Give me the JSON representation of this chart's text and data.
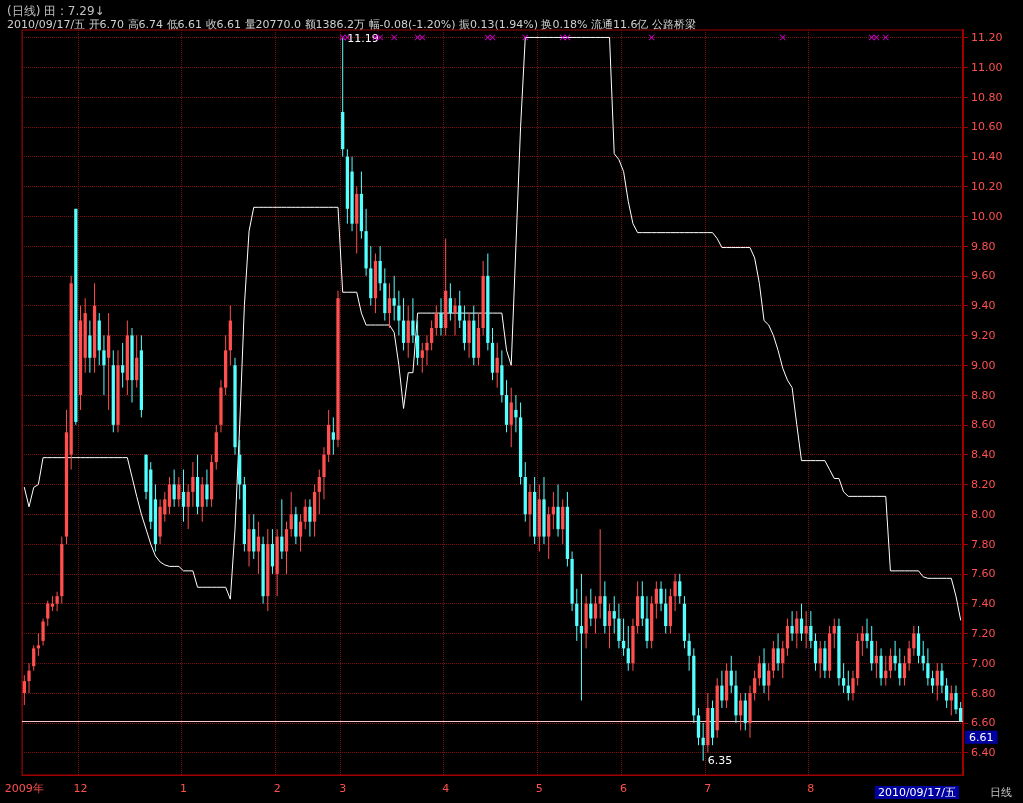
{
  "chart_data": {
    "type": "candlestick",
    "title": "(日线) 田 : 7.29↓",
    "subtitle": "2010/09/17/五 开6.70 高6.74 低6.61 收6.61 量20770.0 额1386.2万 幅-0.08(-1.20%) 振0.13(1.94%) 换0.18% 流通11.6亿 公路桥梁",
    "categories": [
      "2009年",
      null,
      null,
      null,
      null,
      null,
      null,
      null,
      null,
      null,
      null,
      null,
      "12",
      null,
      null,
      null,
      null,
      null,
      null,
      null,
      null,
      null,
      null,
      null,
      null,
      null,
      null,
      null,
      null,
      null,
      null,
      null,
      null,
      null,
      "1",
      null,
      null,
      null,
      null,
      null,
      null,
      null,
      null,
      null,
      null,
      null,
      null,
      null,
      null,
      null,
      null,
      null,
      null,
      null,
      "2",
      null,
      null,
      null,
      null,
      null,
      null,
      null,
      null,
      null,
      null,
      null,
      null,
      null,
      "3",
      null,
      null,
      null,
      null,
      null,
      null,
      null,
      null,
      null,
      null,
      null,
      null,
      null,
      null,
      null,
      null,
      null,
      null,
      null,
      null,
      null,
      "4",
      null,
      null,
      null,
      null,
      null,
      null,
      null,
      null,
      null,
      null,
      null,
      null,
      null,
      null,
      null,
      null,
      null,
      null,
      null,
      "5",
      null,
      null,
      null,
      null,
      null,
      null,
      null,
      null,
      null,
      null,
      null,
      null,
      null,
      null,
      null,
      null,
      null,
      "6",
      null,
      null,
      null,
      null,
      null,
      null,
      null,
      null,
      null,
      null,
      null,
      null,
      null,
      null,
      null,
      null,
      null,
      "7",
      null,
      null,
      null,
      null,
      null,
      null,
      null,
      null,
      null,
      null,
      null,
      null,
      null,
      null,
      null,
      null,
      null,
      null,
      null,
      null,
      null,
      "8",
      null,
      null,
      null,
      null,
      null,
      null,
      null,
      null,
      null,
      null,
      null,
      null,
      null,
      null,
      null,
      null,
      null,
      null,
      null,
      null,
      null,
      null,
      null,
      null,
      null,
      null,
      null,
      null,
      null,
      null,
      null,
      null
    ],
    "ohlc": [
      [
        6.8,
        6.92,
        6.72,
        6.88
      ],
      [
        6.88,
        7.0,
        6.8,
        6.95
      ],
      [
        6.98,
        7.12,
        6.95,
        7.1
      ],
      [
        7.1,
        7.2,
        7.05,
        7.12
      ],
      [
        7.15,
        7.3,
        7.12,
        7.28
      ],
      [
        7.3,
        7.42,
        7.25,
        7.4
      ],
      [
        7.38,
        7.45,
        7.35,
        7.4
      ],
      [
        7.4,
        7.48,
        7.35,
        7.45
      ],
      [
        7.45,
        7.85,
        7.4,
        7.8
      ],
      [
        7.85,
        8.7,
        7.8,
        8.55
      ],
      [
        8.4,
        9.6,
        8.3,
        9.55
      ],
      [
        10.05,
        10.05,
        8.6,
        8.62
      ],
      [
        8.8,
        9.4,
        8.7,
        9.3
      ],
      [
        9.05,
        9.45,
        8.95,
        9.35
      ],
      [
        9.2,
        9.3,
        8.95,
        9.05
      ],
      [
        9.05,
        9.55,
        8.95,
        9.4
      ],
      [
        9.3,
        9.35,
        9.0,
        9.1
      ],
      [
        9.1,
        9.2,
        8.8,
        9.0
      ],
      [
        9.05,
        9.35,
        8.7,
        9.2
      ],
      [
        9.0,
        9.1,
        8.55,
        8.6
      ],
      [
        8.6,
        9.1,
        8.55,
        9.0
      ],
      [
        9.0,
        9.15,
        8.85,
        8.95
      ],
      [
        8.9,
        9.3,
        8.8,
        9.2
      ],
      [
        9.2,
        9.25,
        8.75,
        8.9
      ],
      [
        8.9,
        9.2,
        8.85,
        9.05
      ],
      [
        9.1,
        9.2,
        8.65,
        8.7
      ],
      [
        8.4,
        8.4,
        8.1,
        8.15
      ],
      [
        8.3,
        8.35,
        7.9,
        7.95
      ],
      [
        8.1,
        8.2,
        7.75,
        7.8
      ],
      [
        7.85,
        8.1,
        7.8,
        8.05
      ],
      [
        8.0,
        8.15,
        7.95,
        8.1
      ],
      [
        8.05,
        8.25,
        8.0,
        8.2
      ],
      [
        8.2,
        8.3,
        8.05,
        8.1
      ],
      [
        8.1,
        8.25,
        8.05,
        8.2
      ],
      [
        8.15,
        8.3,
        7.95,
        8.05
      ],
      [
        8.05,
        8.2,
        7.9,
        8.15
      ],
      [
        8.15,
        8.35,
        8.05,
        8.25
      ],
      [
        8.25,
        8.4,
        8.0,
        8.05
      ],
      [
        8.05,
        8.25,
        7.95,
        8.2
      ],
      [
        8.2,
        8.3,
        8.05,
        8.1
      ],
      [
        8.1,
        8.4,
        8.05,
        8.35
      ],
      [
        8.35,
        8.6,
        8.3,
        8.55
      ],
      [
        8.6,
        8.9,
        8.55,
        8.85
      ],
      [
        8.85,
        9.2,
        8.8,
        9.1
      ],
      [
        9.1,
        9.4,
        9.0,
        9.3
      ],
      [
        9.0,
        9.05,
        8.4,
        8.45
      ],
      [
        8.4,
        8.5,
        8.1,
        8.2
      ],
      [
        8.2,
        8.25,
        7.75,
        7.8
      ],
      [
        7.75,
        8.0,
        7.65,
        7.9
      ],
      [
        7.9,
        8.0,
        7.7,
        7.75
      ],
      [
        7.75,
        7.95,
        7.6,
        7.85
      ],
      [
        7.8,
        7.85,
        7.4,
        7.45
      ],
      [
        7.45,
        7.9,
        7.35,
        7.8
      ],
      [
        7.8,
        7.9,
        7.6,
        7.65
      ],
      [
        7.6,
        7.9,
        7.45,
        7.85
      ],
      [
        7.85,
        8.1,
        7.7,
        7.75
      ],
      [
        7.75,
        7.95,
        7.6,
        7.9
      ],
      [
        7.9,
        8.15,
        7.85,
        8.0
      ],
      [
        8.0,
        8.05,
        7.8,
        7.85
      ],
      [
        7.85,
        8.0,
        7.75,
        7.95
      ],
      [
        7.95,
        8.1,
        7.9,
        8.05
      ],
      [
        8.05,
        8.1,
        7.85,
        7.95
      ],
      [
        7.95,
        8.2,
        7.85,
        8.15
      ],
      [
        8.15,
        8.3,
        8.0,
        8.25
      ],
      [
        8.25,
        8.45,
        8.1,
        8.4
      ],
      [
        8.4,
        8.7,
        8.35,
        8.6
      ],
      [
        8.55,
        8.65,
        8.4,
        8.5
      ],
      [
        8.5,
        9.5,
        8.45,
        9.45
      ],
      [
        10.7,
        11.19,
        10.4,
        10.45
      ],
      [
        10.4,
        10.45,
        9.95,
        10.05
      ],
      [
        10.3,
        10.4,
        9.9,
        9.95
      ],
      [
        9.95,
        10.2,
        9.75,
        10.15
      ],
      [
        10.15,
        10.3,
        9.85,
        9.9
      ],
      [
        9.9,
        10.05,
        9.6,
        9.65
      ],
      [
        9.65,
        9.8,
        9.4,
        9.45
      ],
      [
        9.45,
        9.75,
        9.35,
        9.7
      ],
      [
        9.7,
        9.8,
        9.5,
        9.55
      ],
      [
        9.55,
        9.65,
        9.3,
        9.35
      ],
      [
        9.35,
        9.55,
        9.25,
        9.45
      ],
      [
        9.45,
        9.6,
        9.3,
        9.4
      ],
      [
        9.4,
        9.5,
        9.2,
        9.3
      ],
      [
        9.3,
        9.45,
        9.1,
        9.15
      ],
      [
        9.15,
        9.4,
        9.05,
        9.3
      ],
      [
        9.3,
        9.45,
        9.15,
        9.2
      ],
      [
        9.2,
        9.3,
        9.0,
        9.05
      ],
      [
        9.05,
        9.15,
        8.95,
        9.1
      ],
      [
        9.1,
        9.2,
        9.0,
        9.15
      ],
      [
        9.15,
        9.3,
        9.1,
        9.25
      ],
      [
        9.25,
        9.4,
        9.2,
        9.35
      ],
      [
        9.35,
        9.45,
        9.2,
        9.25
      ],
      [
        9.25,
        9.85,
        9.2,
        9.5
      ],
      [
        9.45,
        9.55,
        9.3,
        9.35
      ],
      [
        9.35,
        9.45,
        9.2,
        9.4
      ],
      [
        9.4,
        9.5,
        9.25,
        9.3
      ],
      [
        9.3,
        9.4,
        9.1,
        9.15
      ],
      [
        9.15,
        9.35,
        9.05,
        9.3
      ],
      [
        9.3,
        9.4,
        9.0,
        9.05
      ],
      [
        9.05,
        9.35,
        9.0,
        9.25
      ],
      [
        9.25,
        9.7,
        9.2,
        9.6
      ],
      [
        9.6,
        9.75,
        9.1,
        9.15
      ],
      [
        9.15,
        9.25,
        8.9,
        8.95
      ],
      [
        8.95,
        9.15,
        8.85,
        9.05
      ],
      [
        9.0,
        9.1,
        8.75,
        8.8
      ],
      [
        8.8,
        8.9,
        8.55,
        8.6
      ],
      [
        8.6,
        8.85,
        8.45,
        8.75
      ],
      [
        8.7,
        8.8,
        8.55,
        8.65
      ],
      [
        8.65,
        8.75,
        8.2,
        8.25
      ],
      [
        8.25,
        8.35,
        7.95,
        8.0
      ],
      [
        8.0,
        8.2,
        7.85,
        8.15
      ],
      [
        8.15,
        8.25,
        7.8,
        7.85
      ],
      [
        7.85,
        8.2,
        7.75,
        8.1
      ],
      [
        8.1,
        8.25,
        7.8,
        7.85
      ],
      [
        7.85,
        8.05,
        7.7,
        8.0
      ],
      [
        8.0,
        8.15,
        7.9,
        8.05
      ],
      [
        8.05,
        8.2,
        7.85,
        7.9
      ],
      [
        7.9,
        8.1,
        7.8,
        8.05
      ],
      [
        8.05,
        8.15,
        7.65,
        7.7
      ],
      [
        7.7,
        7.75,
        7.35,
        7.4
      ],
      [
        7.4,
        7.5,
        7.15,
        7.25
      ],
      [
        7.25,
        7.6,
        6.75,
        7.2
      ],
      [
        7.2,
        7.45,
        7.1,
        7.4
      ],
      [
        7.4,
        7.5,
        7.25,
        7.3
      ],
      [
        7.3,
        7.45,
        7.2,
        7.4
      ],
      [
        7.4,
        7.9,
        7.3,
        7.45
      ],
      [
        7.45,
        7.55,
        7.2,
        7.25
      ],
      [
        7.25,
        7.4,
        7.1,
        7.35
      ],
      [
        7.35,
        7.45,
        7.2,
        7.3
      ],
      [
        7.3,
        7.4,
        7.1,
        7.15
      ],
      [
        7.15,
        7.3,
        7.05,
        7.1
      ],
      [
        7.1,
        7.25,
        6.95,
        7.0
      ],
      [
        7.0,
        7.3,
        6.95,
        7.25
      ],
      [
        7.25,
        7.55,
        7.2,
        7.45
      ],
      [
        7.45,
        7.55,
        7.25,
        7.3
      ],
      [
        7.3,
        7.45,
        7.1,
        7.15
      ],
      [
        7.15,
        7.45,
        7.1,
        7.4
      ],
      [
        7.4,
        7.55,
        7.3,
        7.5
      ],
      [
        7.5,
        7.55,
        7.35,
        7.4
      ],
      [
        7.4,
        7.5,
        7.2,
        7.25
      ],
      [
        7.25,
        7.5,
        7.2,
        7.45
      ],
      [
        7.45,
        7.6,
        7.35,
        7.55
      ],
      [
        7.55,
        7.6,
        7.4,
        7.45
      ],
      [
        7.4,
        7.45,
        7.1,
        7.15
      ],
      [
        7.15,
        7.2,
        6.95,
        7.05
      ],
      [
        7.05,
        7.1,
        6.6,
        6.65
      ],
      [
        6.65,
        6.7,
        6.45,
        6.5
      ],
      [
        6.5,
        6.6,
        6.35,
        6.45
      ],
      [
        6.45,
        6.8,
        6.4,
        6.7
      ],
      [
        6.7,
        6.75,
        6.45,
        6.5
      ],
      [
        6.55,
        6.9,
        6.5,
        6.85
      ],
      [
        6.85,
        6.95,
        6.7,
        6.75
      ],
      [
        6.75,
        7.0,
        6.7,
        6.95
      ],
      [
        6.95,
        7.05,
        6.8,
        6.85
      ],
      [
        6.85,
        6.95,
        6.6,
        6.65
      ],
      [
        6.65,
        6.8,
        6.55,
        6.75
      ],
      [
        6.75,
        6.8,
        6.55,
        6.6
      ],
      [
        6.6,
        6.85,
        6.5,
        6.8
      ],
      [
        6.8,
        6.95,
        6.75,
        6.9
      ],
      [
        6.9,
        7.05,
        6.85,
        7.0
      ],
      [
        7.0,
        7.1,
        6.8,
        6.85
      ],
      [
        6.85,
        7.0,
        6.75,
        6.95
      ],
      [
        6.95,
        7.15,
        6.9,
        7.1
      ],
      [
        7.1,
        7.2,
        6.95,
        7.0
      ],
      [
        7.0,
        7.15,
        6.9,
        7.1
      ],
      [
        7.1,
        7.3,
        7.05,
        7.25
      ],
      [
        7.25,
        7.35,
        7.15,
        7.2
      ],
      [
        7.2,
        7.35,
        7.1,
        7.3
      ],
      [
        7.3,
        7.4,
        7.15,
        7.2
      ],
      [
        7.2,
        7.35,
        7.1,
        7.25
      ],
      [
        7.25,
        7.35,
        7.1,
        7.15
      ],
      [
        7.15,
        7.2,
        6.95,
        7.0
      ],
      [
        7.0,
        7.15,
        6.9,
        7.1
      ],
      [
        7.1,
        7.15,
        6.9,
        6.95
      ],
      [
        6.95,
        7.25,
        6.9,
        7.2
      ],
      [
        7.2,
        7.3,
        7.1,
        7.25
      ],
      [
        7.25,
        7.3,
        6.85,
        6.9
      ],
      [
        6.9,
        7.0,
        6.8,
        6.85
      ],
      [
        6.85,
        6.95,
        6.75,
        6.8
      ],
      [
        6.8,
        6.95,
        6.75,
        6.9
      ],
      [
        6.9,
        7.2,
        6.85,
        7.15
      ],
      [
        7.15,
        7.25,
        7.05,
        7.2
      ],
      [
        7.2,
        7.3,
        7.1,
        7.15
      ],
      [
        7.15,
        7.25,
        6.95,
        7.0
      ],
      [
        7.0,
        7.15,
        6.9,
        7.05
      ],
      [
        7.05,
        7.1,
        6.85,
        6.9
      ],
      [
        6.9,
        7.05,
        6.85,
        6.95
      ],
      [
        6.95,
        7.1,
        6.9,
        7.05
      ],
      [
        7.05,
        7.15,
        6.95,
        7.0
      ],
      [
        7.0,
        7.1,
        6.85,
        6.9
      ],
      [
        6.9,
        7.05,
        6.85,
        7.0
      ],
      [
        7.0,
        7.15,
        6.95,
        7.1
      ],
      [
        7.1,
        7.25,
        7.05,
        7.2
      ],
      [
        7.2,
        7.25,
        7.0,
        7.05
      ],
      [
        7.05,
        7.15,
        6.95,
        7.0
      ],
      [
        7.0,
        7.1,
        6.85,
        6.9
      ],
      [
        6.9,
        6.95,
        6.8,
        6.85
      ],
      [
        6.85,
        7.0,
        6.75,
        6.95
      ],
      [
        6.95,
        7.0,
        6.8,
        6.85
      ],
      [
        6.85,
        6.9,
        6.7,
        6.75
      ],
      [
        6.75,
        6.85,
        6.65,
        6.8
      ],
      [
        6.8,
        6.85,
        6.66,
        6.69
      ],
      [
        6.7,
        6.74,
        6.61,
        6.61
      ]
    ],
    "series": [
      {
        "type": "line",
        "color": "#ffffff",
        "marker": "none",
        "values": [
          8.18,
          8.05,
          8.18,
          8.2,
          8.38,
          8.38,
          8.38,
          8.38,
          8.38,
          8.38,
          8.38,
          8.38,
          8.38,
          8.38,
          8.38,
          8.38,
          8.38,
          8.38,
          8.38,
          8.38,
          8.38,
          8.38,
          8.38,
          8.25,
          8.12,
          8.0,
          7.9,
          7.8,
          7.72,
          7.68,
          7.66,
          7.65,
          7.65,
          7.65,
          7.62,
          7.62,
          7.62,
          7.51,
          7.51,
          7.51,
          7.51,
          7.51,
          7.51,
          7.51,
          7.43,
          7.9,
          8.6,
          9.4,
          9.9,
          10.06,
          10.06,
          10.06,
          10.06,
          10.06,
          10.06,
          10.06,
          10.06,
          10.06,
          10.06,
          10.06,
          10.06,
          10.06,
          10.06,
          10.06,
          10.06,
          10.06,
          10.06,
          10.06,
          9.49,
          9.49,
          9.49,
          9.49,
          9.35,
          9.27,
          9.27,
          9.27,
          9.27,
          9.27,
          9.27,
          9.22,
          9.0,
          8.71,
          8.95,
          8.95,
          9.35,
          9.35,
          9.35,
          9.35,
          9.35,
          9.35,
          9.35,
          9.35,
          9.35,
          9.35,
          9.35,
          9.35,
          9.35,
          9.35,
          9.35,
          9.35,
          9.35,
          9.35,
          9.35,
          9.1,
          9.0,
          9.8,
          10.6,
          11.2,
          11.2,
          11.2,
          11.2,
          11.2,
          11.2,
          11.2,
          11.2,
          11.2,
          11.2,
          11.2,
          11.2,
          11.2,
          11.2,
          11.2,
          11.2,
          11.2,
          11.2,
          11.2,
          10.42,
          10.38,
          10.3,
          10.1,
          9.95,
          9.89,
          9.89,
          9.89,
          9.89,
          9.89,
          9.89,
          9.89,
          9.89,
          9.89,
          9.89,
          9.89,
          9.89,
          9.89,
          9.89,
          9.89,
          9.89,
          9.89,
          9.85,
          9.79,
          9.79,
          9.79,
          9.79,
          9.79,
          9.79,
          9.79,
          9.72,
          9.55,
          9.3,
          9.27,
          9.2,
          9.1,
          8.98,
          8.9,
          8.85,
          8.6,
          8.36,
          8.36,
          8.36,
          8.36,
          8.36,
          8.36,
          8.3,
          8.24,
          8.24,
          8.15,
          8.12,
          8.12,
          8.12,
          8.12,
          8.12,
          8.12,
          8.12,
          8.12,
          8.12,
          7.62,
          7.62,
          7.62,
          7.62,
          7.62,
          7.62,
          7.62,
          7.58,
          7.57,
          7.57,
          7.57,
          7.57,
          7.57,
          7.57,
          7.45,
          7.29
        ]
      },
      {
        "type": "scatter",
        "color": "#ff00ff",
        "marker": "cross",
        "values": [
          null,
          null,
          null,
          null,
          null,
          null,
          null,
          null,
          null,
          null,
          null,
          null,
          null,
          null,
          null,
          null,
          null,
          null,
          null,
          null,
          null,
          null,
          null,
          null,
          null,
          null,
          null,
          null,
          null,
          null,
          null,
          null,
          null,
          null,
          null,
          null,
          null,
          null,
          null,
          null,
          null,
          null,
          null,
          null,
          null,
          null,
          null,
          null,
          null,
          null,
          null,
          null,
          null,
          null,
          null,
          null,
          null,
          null,
          null,
          null,
          null,
          null,
          null,
          null,
          null,
          null,
          null,
          null,
          11.2,
          11.2,
          null,
          null,
          null,
          null,
          null,
          11.2,
          11.2,
          null,
          null,
          11.2,
          null,
          null,
          null,
          null,
          11.2,
          11.2,
          null,
          null,
          null,
          null,
          null,
          null,
          null,
          null,
          null,
          null,
          null,
          null,
          null,
          11.2,
          11.2,
          null,
          null,
          null,
          null,
          null,
          null,
          11.2,
          null,
          null,
          null,
          null,
          null,
          null,
          null,
          11.2,
          11.2,
          null,
          null,
          null,
          null,
          null,
          null,
          null,
          null,
          null,
          null,
          null,
          null,
          null,
          null,
          null,
          null,
          null,
          11.2,
          null,
          null,
          null,
          null,
          null,
          null,
          null,
          null,
          null,
          null,
          null,
          null,
          null,
          null,
          null,
          null,
          null,
          null,
          null,
          null,
          null,
          null,
          null,
          null,
          null,
          null,
          null,
          11.2,
          null,
          null,
          null,
          null,
          null,
          null,
          null,
          null,
          null,
          null,
          null,
          null,
          null,
          null,
          null,
          null,
          null,
          null,
          11.2,
          11.2,
          null,
          11.2,
          null,
          null,
          null,
          null,
          null,
          null,
          null,
          null,
          null,
          null,
          null,
          null,
          null,
          null,
          null,
          null
        ]
      }
    ],
    "ylim": [
      6.25,
      11.25
    ],
    "yticks": [
      {
        "value": 6.4,
        "label": "6.40"
      },
      {
        "value": 6.6,
        "label": "6.60"
      },
      {
        "value": 6.8,
        "label": "6.80"
      },
      {
        "value": 7.0,
        "label": "7.00"
      },
      {
        "value": 7.2,
        "label": "7.20"
      },
      {
        "value": 7.4,
        "label": "7.40"
      },
      {
        "value": 7.6,
        "label": "7.60"
      },
      {
        "value": 7.8,
        "label": "7.80"
      },
      {
        "value": 8.0,
        "label": "8.00"
      },
      {
        "value": 8.2,
        "label": "8.20"
      },
      {
        "value": 8.4,
        "label": "8.40"
      },
      {
        "value": 8.6,
        "label": "8.60"
      },
      {
        "value": 8.8,
        "label": "8.80"
      },
      {
        "value": 9.0,
        "label": "9.00"
      },
      {
        "value": 9.2,
        "label": "9.20"
      },
      {
        "value": 9.4,
        "label": "9.40"
      },
      {
        "value": 9.6,
        "label": "9.60"
      },
      {
        "value": 9.8,
        "label": "9.80"
      },
      {
        "value": 10.0,
        "label": "10.00"
      },
      {
        "value": 10.2,
        "label": "10.20"
      },
      {
        "value": 10.4,
        "label": "10.40"
      },
      {
        "value": 10.6,
        "label": "10.60"
      },
      {
        "value": 10.8,
        "label": "10.80"
      },
      {
        "value": 11.0,
        "label": "11.00"
      },
      {
        "value": 11.2,
        "label": "11.20"
      }
    ],
    "ref_lines": [
      {
        "axis": "y",
        "value": 6.61,
        "label": "6.61",
        "color": "#ffc8c8"
      }
    ],
    "annotations": [
      {
        "text": "11.19",
        "x": "3",
        "y": 11.19
      },
      "6.35",
      "2010/09/17/五",
      "日线"
    ],
    "grid": true
  }
}
